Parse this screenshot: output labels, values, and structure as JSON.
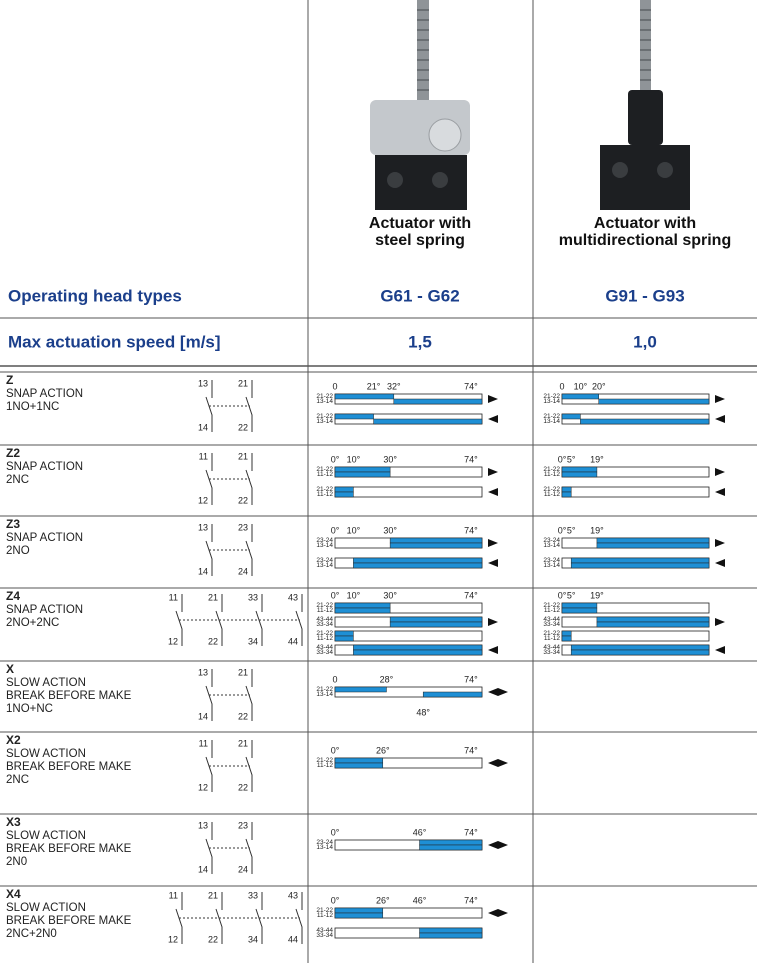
{
  "header": {
    "head_label": "Operating head types",
    "speed_label": "Max actuation speed [m/s]"
  },
  "columns": [
    {
      "title_lines": [
        "Actuator with",
        "steel spring"
      ],
      "head": "G61 - G62",
      "speed": "1,5"
    },
    {
      "title_lines": [
        "Actuator with",
        "multidirectional spring"
      ],
      "head": "G91 - G93",
      "speed": "1,0"
    }
  ],
  "rows": [
    {
      "code": "Z",
      "description": [
        "SNAP ACTION",
        "1NO+1NC"
      ],
      "contacts": [
        [
          "13",
          "14"
        ],
        [
          "21",
          "22"
        ]
      ],
      "charts": [
        {
          "ticks": [
            0,
            {
              "value": 21,
              "label": "21°"
            },
            {
              "value": 32,
              "label": "32°"
            },
            {
              "value": 74,
              "label": "74°"
            }
          ],
          "bars": [
            {
              "contacts": [
                "21-22",
                "13-14"
              ],
              "closed": [
                [
                  0,
                  32
                ],
                [
                  32,
                  80
                ]
              ],
              "arrow": "right"
            },
            {
              "contacts": [
                "21-22",
                "13-14"
              ],
              "closed": [
                [
                  0,
                  21
                ],
                [
                  21,
                  80
                ]
              ],
              "arrow": "left"
            }
          ]
        },
        {
          "ticks": [
            0,
            {
              "value": 10,
              "label": "10°"
            },
            {
              "value": 20,
              "label": "20°"
            }
          ],
          "bars": [
            {
              "contacts": [
                "21-22",
                "13-14"
              ],
              "closed": [
                [
                  0,
                  20
                ],
                [
                  20,
                  80
                ]
              ],
              "arrow": "right"
            },
            {
              "contacts": [
                "21-22",
                "13-14"
              ],
              "closed": [
                [
                  0,
                  10
                ],
                [
                  10,
                  80
                ]
              ],
              "arrow": "left"
            }
          ]
        }
      ]
    },
    {
      "code": "Z2",
      "description": [
        "SNAP ACTION",
        "2NC"
      ],
      "contacts": [
        [
          "11",
          "12"
        ],
        [
          "21",
          "22"
        ]
      ],
      "charts": [
        {
          "ticks": [
            {
              "value": 0,
              "label": "0°"
            },
            {
              "value": 10,
              "label": "10°"
            },
            {
              "value": 30,
              "label": "30°"
            },
            {
              "value": 74,
              "label": "74°"
            }
          ],
          "bars": [
            {
              "contacts": [
                "21-22",
                "11-12"
              ],
              "closed": [
                [
                  0,
                  30
                ],
                [
                  0,
                  30
                ]
              ],
              "arrow": "right"
            },
            {
              "contacts": [
                "21-22",
                "11-12"
              ],
              "closed": [
                [
                  0,
                  10
                ],
                [
                  0,
                  10
                ]
              ],
              "arrow": "left"
            }
          ]
        },
        {
          "ticks": [
            {
              "value": 0,
              "label": "0°"
            },
            {
              "value": 5,
              "label": "5°"
            },
            {
              "value": 19,
              "label": "19°"
            }
          ],
          "bars": [
            {
              "contacts": [
                "21-22",
                "11-12"
              ],
              "closed": [
                [
                  0,
                  19
                ],
                [
                  0,
                  19
                ]
              ],
              "arrow": "right"
            },
            {
              "contacts": [
                "21-22",
                "11-12"
              ],
              "closed": [
                [
                  0,
                  5
                ],
                [
                  0,
                  5
                ]
              ],
              "arrow": "left"
            }
          ]
        }
      ]
    },
    {
      "code": "Z3",
      "description": [
        "SNAP ACTION",
        "2NO"
      ],
      "contacts": [
        [
          "13",
          "14"
        ],
        [
          "23",
          "24"
        ]
      ],
      "charts": [
        {
          "ticks": [
            {
              "value": 0,
              "label": "0°"
            },
            {
              "value": 10,
              "label": "10°"
            },
            {
              "value": 30,
              "label": "30°"
            },
            {
              "value": 74,
              "label": "74°"
            }
          ],
          "bars": [
            {
              "contacts": [
                "23-24",
                "13-14"
              ],
              "closed": [
                [
                  30,
                  80
                ],
                [
                  30,
                  80
                ]
              ],
              "arrow": "right"
            },
            {
              "contacts": [
                "23-24",
                "13-14"
              ],
              "closed": [
                [
                  10,
                  80
                ],
                [
                  10,
                  80
                ]
              ],
              "arrow": "left"
            }
          ]
        },
        {
          "ticks": [
            {
              "value": 0,
              "label": "0°"
            },
            {
              "value": 5,
              "label": "5°"
            },
            {
              "value": 19,
              "label": "19°"
            }
          ],
          "bars": [
            {
              "contacts": [
                "23-24",
                "13-14"
              ],
              "closed": [
                [
                  19,
                  80
                ],
                [
                  19,
                  80
                ]
              ],
              "arrow": "right"
            },
            {
              "contacts": [
                "23-24",
                "13-14"
              ],
              "closed": [
                [
                  5,
                  80
                ],
                [
                  5,
                  80
                ]
              ],
              "arrow": "left"
            }
          ]
        }
      ]
    },
    {
      "code": "Z4",
      "description": [
        "SNAP ACTION",
        "2NO+2NC"
      ],
      "contacts": [
        [
          "11",
          "12"
        ],
        [
          "21",
          "22"
        ],
        [
          "33",
          "34"
        ],
        [
          "43",
          "44"
        ]
      ],
      "charts": [
        {
          "ticks": [
            {
              "value": 0,
              "label": "0°"
            },
            {
              "value": 10,
              "label": "10°"
            },
            {
              "value": 30,
              "label": "30°"
            },
            {
              "value": 74,
              "label": "74°"
            }
          ],
          "bars": [
            {
              "contacts": [
                "21-22",
                "11-12"
              ],
              "closed": [
                [
                  0,
                  30
                ],
                [
                  0,
                  30
                ]
              ]
            },
            {
              "contacts": [
                "43-44",
                "33-34"
              ],
              "closed": [
                [
                  30,
                  80
                ],
                [
                  30,
                  80
                ]
              ],
              "arrow": "right"
            },
            {
              "contacts": [
                "21-22",
                "11-12"
              ],
              "closed": [
                [
                  0,
                  10
                ],
                [
                  0,
                  10
                ]
              ]
            },
            {
              "contacts": [
                "43-44",
                "33-34"
              ],
              "closed": [
                [
                  10,
                  80
                ],
                [
                  10,
                  80
                ]
              ],
              "arrow": "left"
            }
          ]
        },
        {
          "ticks": [
            {
              "value": 0,
              "label": "0°"
            },
            {
              "value": 5,
              "label": "5°"
            },
            {
              "value": 19,
              "label": "19°"
            }
          ],
          "bars": [
            {
              "contacts": [
                "21-22",
                "11-12"
              ],
              "closed": [
                [
                  0,
                  19
                ],
                [
                  0,
                  19
                ]
              ]
            },
            {
              "contacts": [
                "43-44",
                "33-34"
              ],
              "closed": [
                [
                  19,
                  80
                ],
                [
                  19,
                  80
                ]
              ],
              "arrow": "right"
            },
            {
              "contacts": [
                "21-22",
                "11-12"
              ],
              "closed": [
                [
                  0,
                  5
                ],
                [
                  0,
                  5
                ]
              ]
            },
            {
              "contacts": [
                "43-44",
                "33-34"
              ],
              "closed": [
                [
                  5,
                  80
                ],
                [
                  5,
                  80
                ]
              ],
              "arrow": "left"
            }
          ]
        }
      ]
    },
    {
      "code": "X",
      "description": [
        "SLOW ACTION",
        "BREAK BEFORE MAKE",
        "1NO+NC"
      ],
      "contacts": [
        [
          "13",
          "14"
        ],
        [
          "21",
          "22"
        ]
      ],
      "charts": [
        {
          "ticks": [
            0,
            {
              "value": 28,
              "label": "28°"
            },
            {
              "value": 74,
              "label": "74°"
            }
          ],
          "below": [
            {
              "value": 48,
              "label": "48°"
            }
          ],
          "bars": [
            {
              "contacts": [
                "21-22",
                "13-14"
              ],
              "closed": [
                [
                  0,
                  28
                ],
                [
                  48,
                  80
                ]
              ],
              "arrow": "both"
            }
          ]
        }
      ]
    },
    {
      "code": "X2",
      "description": [
        "SLOW ACTION",
        "BREAK BEFORE MAKE",
        "2NC"
      ],
      "contacts": [
        [
          "11",
          "12"
        ],
        [
          "21",
          "22"
        ]
      ],
      "charts": [
        {
          "ticks": [
            {
              "value": 0,
              "label": "0°"
            },
            {
              "value": 26,
              "label": "26°"
            },
            {
              "value": 74,
              "label": "74°"
            }
          ],
          "bars": [
            {
              "contacts": [
                "21-22",
                "11-12"
              ],
              "closed": [
                [
                  0,
                  26
                ],
                [
                  0,
                  26
                ]
              ],
              "arrow": "both"
            }
          ]
        }
      ]
    },
    {
      "code": "X3",
      "description": [
        "SLOW ACTION",
        "BREAK BEFORE MAKE",
        "2N0"
      ],
      "contacts": [
        [
          "13",
          "14"
        ],
        [
          "23",
          "24"
        ]
      ],
      "charts": [
        {
          "ticks": [
            {
              "value": 0,
              "label": "0°"
            },
            {
              "value": 46,
              "label": "46°"
            },
            {
              "value": 74,
              "label": "74°"
            }
          ],
          "bars": [
            {
              "contacts": [
                "23-24",
                "13-14"
              ],
              "closed": [
                [
                  46,
                  80
                ],
                [
                  46,
                  80
                ]
              ],
              "arrow": "both"
            }
          ]
        }
      ]
    },
    {
      "code": "X4",
      "description": [
        "SLOW ACTION",
        "BREAK BEFORE MAKE",
        "2NC+2N0"
      ],
      "contacts": [
        [
          "11",
          "12"
        ],
        [
          "21",
          "22"
        ],
        [
          "33",
          "34"
        ],
        [
          "43",
          "44"
        ]
      ],
      "charts": [
        {
          "ticks": [
            {
              "value": 0,
              "label": "0°"
            },
            {
              "value": 26,
              "label": "26°"
            },
            {
              "value": 46,
              "label": "46°"
            },
            {
              "value": 74,
              "label": "74°"
            }
          ],
          "bars": [
            {
              "contacts": [
                "21-22",
                "11-12"
              ],
              "closed": [
                [
                  0,
                  26
                ],
                [
                  0,
                  26
                ]
              ],
              "arrow": "both"
            },
            {
              "contacts": [
                "43-44",
                "33-34"
              ],
              "closed": [
                [
                  46,
                  80
                ],
                [
                  46,
                  80
                ]
              ]
            }
          ]
        }
      ]
    }
  ]
}
